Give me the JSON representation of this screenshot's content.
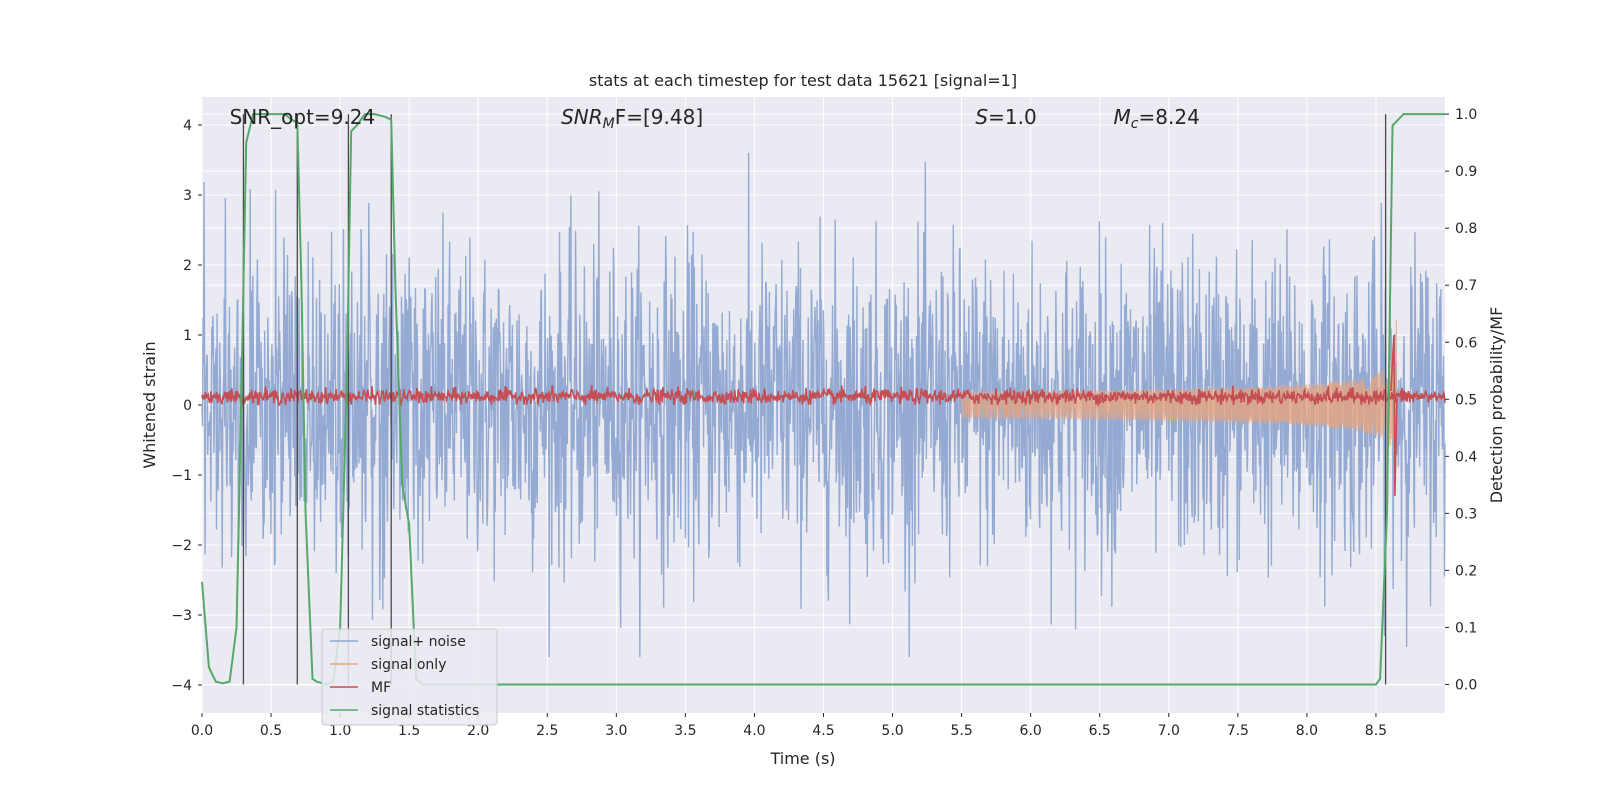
{
  "chart_data": {
    "type": "line",
    "title": "stats at each timestep for test data 15621 [signal=1]",
    "xlabel": "Time (s)",
    "ylabel": "Whitened strain",
    "ylabel_right": "Detection probability/MF",
    "xlim": [
      0.0,
      9.0
    ],
    "ylim": [
      -4.4,
      4.4
    ],
    "ylim_right": [
      -0.05,
      1.03
    ],
    "x_ticks": [
      0.0,
      0.5,
      1.0,
      1.5,
      2.0,
      2.5,
      3.0,
      3.5,
      4.0,
      4.5,
      5.0,
      5.5,
      6.0,
      6.5,
      7.0,
      7.5,
      8.0,
      8.5
    ],
    "x_tick_labels": [
      "0.0",
      "0.5",
      "1.0",
      "1.5",
      "2.0",
      "2.5",
      "3.0",
      "3.5",
      "4.0",
      "4.5",
      "5.0",
      "5.5",
      "6.0",
      "6.5",
      "7.0",
      "7.5",
      "8.0",
      "8.5"
    ],
    "y_ticks": [
      4,
      3,
      2,
      1,
      0,
      -1,
      -2,
      -3,
      -4
    ],
    "y_tick_labels": [
      "4",
      "3",
      "2",
      "1",
      "0",
      "−1",
      "−2",
      "−3",
      "−4"
    ],
    "y_ticks_right": [
      1.0,
      0.9,
      0.8,
      0.7,
      0.6,
      0.5,
      0.4,
      0.3,
      0.2,
      0.1,
      0.0
    ],
    "y_tick_labels_right": [
      "1.0",
      "0.9",
      "0.8",
      "0.7",
      "0.6",
      "0.5",
      "0.4",
      "0.3",
      "0.2",
      "0.1",
      "0.0"
    ],
    "grid": true,
    "background": "#eaeaf2",
    "annotations": [
      {
        "id": "snr-opt",
        "text": "SNR_opt=9.24",
        "x": 0.2
      },
      {
        "id": "snr-mf",
        "prefix": "SNR",
        "sub": "M",
        "suffix": "F=[9.48]",
        "x": 2.6
      },
      {
        "id": "s-value",
        "prefix": "S",
        "suffix": "=1.0",
        "x": 5.6
      },
      {
        "id": "mc-value",
        "prefix": "M",
        "sub": "c",
        "suffix": "=8.24",
        "x": 6.6
      }
    ],
    "vertical_markers": [
      0.3,
      0.69,
      1.06,
      1.37,
      8.57
    ],
    "series": [
      {
        "name": "signal+ noise",
        "axis": "left",
        "color": "#8fa7d0",
        "style": "noise",
        "noise_std": 1.1,
        "noise_max": 3.95,
        "noise_min": -3.6
      },
      {
        "name": "signal only",
        "axis": "left",
        "color": "#e6a47f",
        "style": "chirp",
        "start": 5.5,
        "end": 8.65,
        "peak_amplitude": 1.3
      },
      {
        "name": "MF",
        "axis": "left",
        "color": "#c44e52",
        "style": "mf",
        "level": 0.12,
        "spike_x": 8.63,
        "spike_max": 1.0,
        "spike_min": -1.3
      },
      {
        "name": "signal statistics",
        "axis": "right",
        "color": "#55a868",
        "x": [
          0.0,
          0.05,
          0.1,
          0.15,
          0.2,
          0.25,
          0.28,
          0.32,
          0.37,
          0.42,
          0.5,
          0.6,
          0.65,
          0.69,
          0.72,
          0.75,
          0.8,
          0.83,
          0.9,
          0.95,
          1.0,
          1.05,
          1.08,
          1.12,
          1.18,
          1.25,
          1.33,
          1.37,
          1.4,
          1.45,
          1.5,
          1.55,
          1.6,
          2.0,
          3.0,
          4.0,
          5.0,
          6.0,
          7.0,
          8.0,
          8.5,
          8.53,
          8.58,
          8.62,
          8.7,
          9.0
        ],
        "values": [
          0.18,
          0.03,
          0.005,
          0.002,
          0.005,
          0.1,
          0.45,
          0.95,
          1.0,
          1.0,
          1.0,
          1.0,
          0.99,
          0.985,
          0.7,
          0.3,
          0.01,
          0.005,
          0.0,
          0.005,
          0.1,
          0.55,
          0.97,
          0.98,
          1.0,
          1.0,
          0.995,
          0.99,
          0.7,
          0.35,
          0.28,
          0.01,
          0.0,
          0.0,
          0.0,
          0.0,
          0.0,
          0.0,
          0.0,
          0.0,
          0.0,
          0.01,
          0.3,
          0.98,
          1.0,
          1.0
        ]
      }
    ]
  }
}
